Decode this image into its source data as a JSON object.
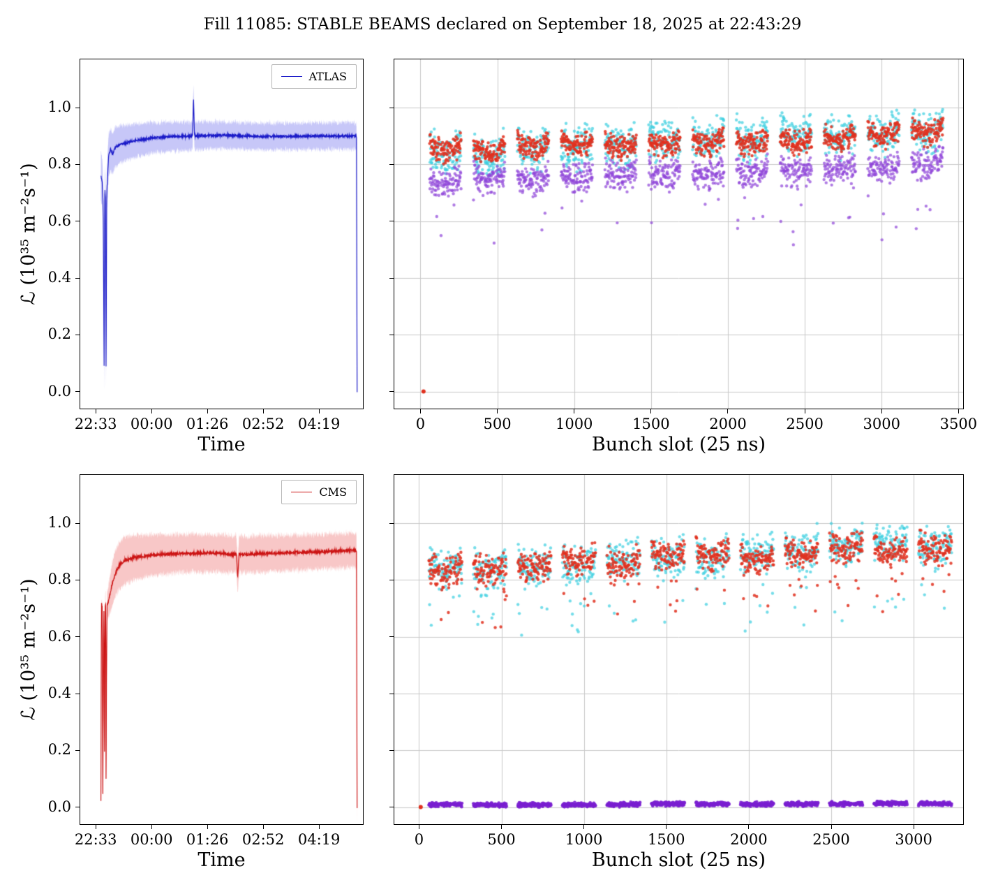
{
  "title": "Fill 11085: STABLE BEAMS declared on September 18, 2025 at 22:43:29",
  "chart_data": [
    {
      "name": "atlas-luminosity-vs-time",
      "type": "line",
      "xlabel": "Time",
      "ylabel": "ℒ (10³⁵ m⁻²s⁻¹)",
      "legend": {
        "label": "ATLAS",
        "color": "#1a1ac8"
      },
      "x_tick_labels": [
        "22:33",
        "00:00",
        "01:26",
        "02:52",
        "04:19"
      ],
      "x_tick_values": [
        0,
        86.5,
        173,
        259.5,
        346
      ],
      "y_tick_labels": [
        "0.0",
        "0.2",
        "0.4",
        "0.6",
        "0.8",
        "1.0"
      ],
      "y_tick_values": [
        0,
        0.2,
        0.4,
        0.6,
        0.8,
        1.0
      ],
      "xlim": [
        -24,
        414
      ],
      "ylim": [
        -0.06,
        1.17
      ],
      "grid": false,
      "seed": 11,
      "line_color": "#1a1ac8",
      "band_color": "rgba(95,95,235,0.35)",
      "line_noise": 0.004,
      "band_noise": 0.009,
      "keypoints": [
        [
          8,
          0.76
        ],
        [
          10,
          0.74
        ],
        [
          11.5,
          0.66
        ],
        [
          13,
          0.08
        ],
        [
          14,
          0.72
        ],
        [
          15,
          0.68
        ],
        [
          16,
          0.05
        ],
        [
          17,
          0.7
        ],
        [
          18,
          0.74
        ],
        [
          20,
          0.83
        ],
        [
          23,
          0.855
        ],
        [
          26,
          0.835
        ],
        [
          30,
          0.86
        ],
        [
          40,
          0.872
        ],
        [
          60,
          0.884
        ],
        [
          87,
          0.893
        ],
        [
          120,
          0.898
        ],
        [
          150,
          0.9
        ],
        [
          151.5,
          1.04
        ],
        [
          153,
          0.9
        ],
        [
          200,
          0.903
        ],
        [
          260,
          0.898
        ],
        [
          320,
          0.9
        ],
        [
          404,
          0.9
        ],
        [
          405,
          0.0
        ]
      ],
      "band_halfwidth": [
        [
          8,
          0.085
        ],
        [
          25,
          0.072
        ],
        [
          50,
          0.062
        ],
        [
          100,
          0.052
        ],
        [
          200,
          0.047
        ],
        [
          405,
          0.047
        ]
      ]
    },
    {
      "name": "atlas-bunch-by-bunch",
      "type": "scatter",
      "xlabel": "Bunch slot (25 ns)",
      "ylabel": "",
      "x_tick_labels": [
        "0",
        "500",
        "1000",
        "1500",
        "2000",
        "2500",
        "3000",
        "3500"
      ],
      "x_tick_values": [
        0,
        500,
        1000,
        1500,
        2000,
        2500,
        3000,
        3500
      ],
      "y_tick_labels": [],
      "y_tick_values": [
        0,
        0.2,
        0.4,
        0.6,
        0.8,
        1.0
      ],
      "xlim": [
        -170,
        3530
      ],
      "ylim": [
        -0.06,
        1.17
      ],
      "grid": true,
      "seed": 23,
      "trains": {
        "count": 12,
        "first": 60,
        "period": 285,
        "length": 204,
        "step": 2
      },
      "zero_marker": {
        "x": 20,
        "y": 0,
        "color": "#e0301e"
      },
      "series": [
        {
          "name": "cyan",
          "color": "#3bcfe0",
          "base": 0.85,
          "slope": 0.1,
          "spread": 0.048,
          "u": 0.06,
          "alpha": 0.7,
          "outlier_frac": 0,
          "outlier_drop": [
            0,
            0
          ],
          "r": 2.2,
          "toff_scale": 1
        },
        {
          "name": "purple",
          "color": "#8e44d8",
          "base": 0.745,
          "slope": 0.065,
          "spread": 0.034,
          "u": 0.045,
          "alpha": 0.7,
          "outlier_frac": 0.03,
          "outlier_drop": [
            0.08,
            0.24
          ],
          "r": 2.2,
          "toff_scale": 1
        },
        {
          "name": "red",
          "color": "#e0301e",
          "base": 0.868,
          "slope": 0.055,
          "spread": 0.028,
          "u": 0.05,
          "alpha": 0.85,
          "outlier_frac": 0,
          "outlier_drop": [
            0,
            0
          ],
          "r": 2.2,
          "toff_scale": 1
        }
      ]
    },
    {
      "name": "cms-luminosity-vs-time",
      "type": "line",
      "xlabel": "Time",
      "ylabel": "ℒ (10³⁵ m⁻²s⁻¹)",
      "legend": {
        "label": "CMS",
        "color": "#cc1414"
      },
      "x_tick_labels": [
        "22:33",
        "00:00",
        "01:26",
        "02:52",
        "04:19"
      ],
      "x_tick_values": [
        0,
        86.5,
        173,
        259.5,
        346
      ],
      "y_tick_labels": [
        "0.0",
        "0.2",
        "0.4",
        "0.6",
        "0.8",
        "1.0"
      ],
      "y_tick_values": [
        0,
        0.2,
        0.4,
        0.6,
        0.8,
        1.0
      ],
      "xlim": [
        -24,
        414
      ],
      "ylim": [
        -0.06,
        1.17
      ],
      "grid": false,
      "seed": 31,
      "line_color": "#cc1414",
      "band_color": "rgba(235,85,85,0.33)",
      "line_noise": 0.005,
      "band_noise": 0.011,
      "keypoints": [
        [
          8,
          0.02
        ],
        [
          8.5,
          0.55
        ],
        [
          9,
          0.72
        ],
        [
          10,
          0.7
        ],
        [
          10.5,
          0.28
        ],
        [
          11,
          0.04
        ],
        [
          12,
          0.6
        ],
        [
          12.8,
          0.72
        ],
        [
          13.5,
          0.12
        ],
        [
          14.5,
          0.7
        ],
        [
          15.5,
          0.72
        ],
        [
          16,
          0.02
        ],
        [
          16.5,
          0.4
        ],
        [
          17.5,
          0.71
        ],
        [
          19,
          0.72
        ],
        [
          22,
          0.75
        ],
        [
          26,
          0.79
        ],
        [
          30,
          0.82
        ],
        [
          36,
          0.85
        ],
        [
          45,
          0.87
        ],
        [
          60,
          0.88
        ],
        [
          90,
          0.888
        ],
        [
          130,
          0.893
        ],
        [
          180,
          0.895
        ],
        [
          218,
          0.89
        ],
        [
          220,
          0.805
        ],
        [
          222,
          0.89
        ],
        [
          280,
          0.895
        ],
        [
          330,
          0.898
        ],
        [
          404,
          0.905
        ],
        [
          405,
          0.0
        ]
      ],
      "band_halfwidth": [
        [
          8,
          0.012
        ],
        [
          18,
          0.05
        ],
        [
          26,
          0.08
        ],
        [
          40,
          0.085
        ],
        [
          80,
          0.072
        ],
        [
          150,
          0.066
        ],
        [
          405,
          0.06
        ]
      ]
    },
    {
      "name": "cms-bunch-by-bunch",
      "type": "scatter",
      "xlabel": "Bunch slot (25 ns)",
      "ylabel": "",
      "x_tick_labels": [
        "0",
        "500",
        "1000",
        "1500",
        "2000",
        "2500",
        "3000"
      ],
      "x_tick_values": [
        0,
        500,
        1000,
        1500,
        2000,
        2500,
        3000
      ],
      "y_tick_labels": [],
      "y_tick_values": [
        0,
        0.2,
        0.4,
        0.6,
        0.8,
        1.0
      ],
      "xlim": [
        -150,
        3300
      ],
      "ylim": [
        -0.06,
        1.17
      ],
      "grid": true,
      "seed": 47,
      "trains": {
        "count": 12,
        "first": 60,
        "period": 270,
        "length": 200,
        "step": 2
      },
      "zero_marker": {
        "x": 10,
        "y": 0,
        "color": "#e0301e"
      },
      "series": [
        {
          "name": "cyan",
          "color": "#3bcfe0",
          "base": 0.84,
          "slope": 0.105,
          "spread": 0.045,
          "u": 0.05,
          "alpha": 0.7,
          "outlier_frac": 0.07,
          "outlier_drop": [
            0.04,
            0.25
          ],
          "r": 2.2,
          "toff_scale": 1
        },
        {
          "name": "red",
          "color": "#e0301e",
          "base": 0.845,
          "slope": 0.09,
          "spread": 0.034,
          "u": 0.05,
          "alpha": 0.85,
          "outlier_frac": 0.05,
          "outlier_drop": [
            0.04,
            0.2
          ],
          "r": 2.2,
          "toff_scale": 1
        },
        {
          "name": "purple-flat",
          "color": "#7a1fd0",
          "base": 0.008,
          "slope": 0.004,
          "spread": 0.005,
          "u": 0,
          "alpha": 0.9,
          "outlier_frac": 0,
          "outlier_drop": [
            0,
            0
          ],
          "r": 2.4,
          "toff_scale": 0.15
        }
      ]
    }
  ]
}
